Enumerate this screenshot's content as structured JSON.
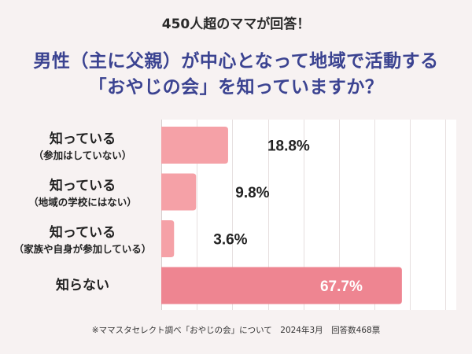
{
  "theme": {
    "background": "#f7f2f2",
    "plot_background": "#ffffff",
    "title_color": "#3b4391",
    "grid_color": "#e6dfdf",
    "axis_color": "#d6cdcd",
    "text_color": "#222222",
    "inside_label_color": "#ffffff"
  },
  "chart_data": {
    "type": "bar",
    "orientation": "horizontal",
    "kicker": "450人超のママが回答！",
    "title_lines": [
      "男性（主に父親）が中心となって地域で活動する",
      "「おやじの会」を知っていますか？"
    ],
    "categories": [
      {
        "main": "知っている",
        "sub": "（参加はしていない）"
      },
      {
        "main": "知っている",
        "sub": "（地域の学校にはない）"
      },
      {
        "main": "知っている",
        "sub": "（家族や自身が参加している）"
      },
      {
        "main": "知らない"
      }
    ],
    "values": [
      18.8,
      9.8,
      3.6,
      67.7
    ],
    "data_labels": [
      "18.8%",
      "9.8%",
      "3.6%",
      "67.7%"
    ],
    "bar_colors": [
      "#f5a1a7",
      "#f5a1a7",
      "#f5a1a7",
      "#ee8591"
    ],
    "xlim": [
      0,
      83
    ],
    "grid": true,
    "grid_step": 10,
    "legend": "none",
    "source_note": "※ママスタセレクト調べ「おやじの会」について　2024年3月　回答数468票"
  }
}
